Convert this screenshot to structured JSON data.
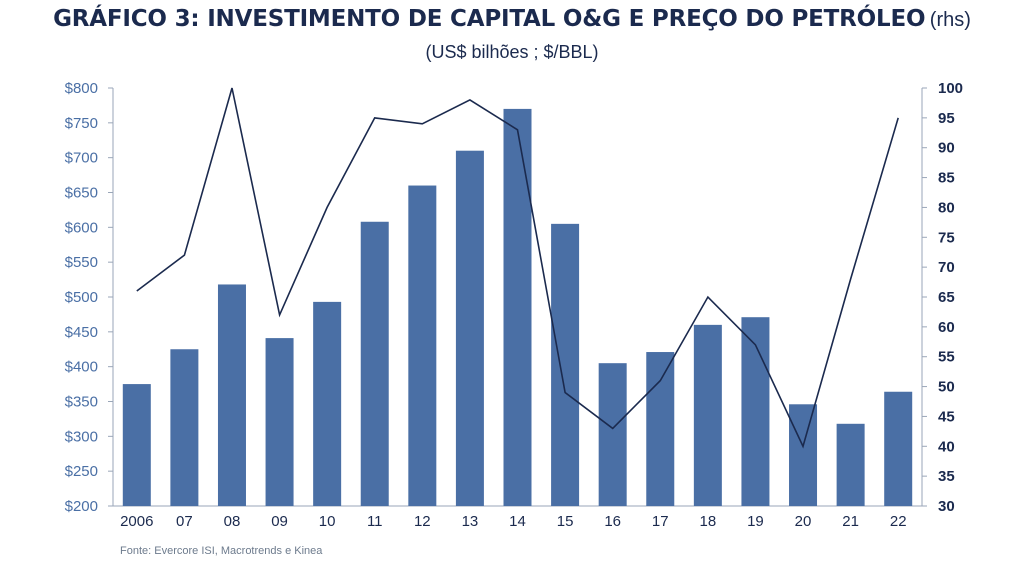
{
  "header": {
    "title": "GRÁFICO 3: INVESTIMENTO DE CAPITAL O&G E PREÇO DO PETRÓLEO",
    "title_suffix": "(rhs)",
    "subtitle": "(US$ bilhões ; $/BBL)"
  },
  "footer": {
    "source": "Fonte: Evercore ISI, Macrotrends e Kinea"
  },
  "chart_data": {
    "type": "bar",
    "categories": [
      "2006",
      "07",
      "08",
      "09",
      "10",
      "11",
      "12",
      "13",
      "14",
      "15",
      "16",
      "17",
      "18",
      "19",
      "20",
      "21",
      "22"
    ],
    "series": [
      {
        "type": "bar",
        "axis": "left",
        "color": "#4a6fa5",
        "values": [
          375,
          425,
          518,
          441,
          493,
          608,
          660,
          710,
          770,
          605,
          405,
          421,
          460,
          471,
          346,
          318,
          364
        ]
      },
      {
        "type": "line",
        "axis": "right",
        "color": "#1b2a4e",
        "values": [
          66,
          72,
          100,
          62,
          80,
          95,
          94,
          98,
          93,
          49,
          43,
          51,
          65,
          57,
          40,
          68,
          95
        ]
      }
    ],
    "y_left": {
      "range": [
        200,
        800
      ],
      "ticks": [
        200,
        250,
        300,
        350,
        400,
        450,
        500,
        550,
        600,
        650,
        700,
        750,
        800
      ],
      "tick_labels": [
        "$200",
        "$250",
        "$300",
        "$350",
        "$400",
        "$450",
        "$500",
        "$550",
        "$600",
        "$650",
        "$700",
        "$750",
        "$800"
      ]
    },
    "y_right": {
      "range": [
        30,
        100
      ],
      "ticks": [
        30,
        35,
        40,
        45,
        50,
        55,
        60,
        65,
        70,
        75,
        80,
        85,
        90,
        95,
        100
      ],
      "tick_labels": [
        "30",
        "35",
        "40",
        "45",
        "50",
        "55",
        "60",
        "65",
        "70",
        "75",
        "80",
        "85",
        "90",
        "95",
        "100"
      ]
    },
    "grid": false,
    "legend": "none"
  }
}
